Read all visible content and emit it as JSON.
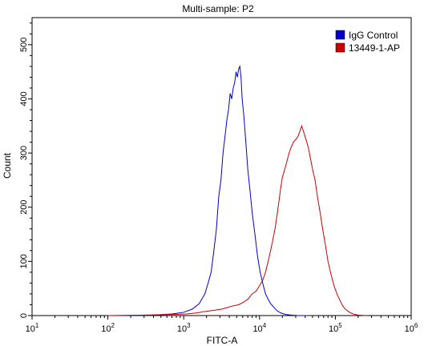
{
  "chart_data": {
    "type": "line",
    "title": "Multi-sample: P2",
    "xlabel": "FITC-A",
    "ylabel": "Count",
    "x_scale": "log",
    "xlim": [
      10,
      1000000
    ],
    "ylim": [
      0,
      550
    ],
    "x_ticks": [
      {
        "base": "10",
        "exp": "1",
        "value": 10
      },
      {
        "base": "10",
        "exp": "2",
        "value": 100
      },
      {
        "base": "10",
        "exp": "3",
        "value": 1000
      },
      {
        "base": "10",
        "exp": "4",
        "value": 10000
      },
      {
        "base": "10",
        "exp": "5",
        "value": 100000
      },
      {
        "base": "10",
        "exp": "6",
        "value": 1000000
      }
    ],
    "y_ticks": [
      "0",
      "100",
      "200",
      "300",
      "400",
      "500"
    ],
    "legend_position": "top-right",
    "grid": false,
    "series": [
      {
        "name": "IgG Control",
        "color": "#0000cc",
        "points": [
          [
            160,
            0
          ],
          [
            400,
            1
          ],
          [
            700,
            3
          ],
          [
            1000,
            6
          ],
          [
            1300,
            12
          ],
          [
            1600,
            22
          ],
          [
            1900,
            40
          ],
          [
            2100,
            60
          ],
          [
            2300,
            80
          ],
          [
            2500,
            120
          ],
          [
            2700,
            160
          ],
          [
            2900,
            220
          ],
          [
            3100,
            250
          ],
          [
            3300,
            300
          ],
          [
            3500,
            330
          ],
          [
            3700,
            360
          ],
          [
            3900,
            380
          ],
          [
            4100,
            410
          ],
          [
            4300,
            400
          ],
          [
            4500,
            420
          ],
          [
            4700,
            430
          ],
          [
            4900,
            450
          ],
          [
            5100,
            440
          ],
          [
            5300,
            455
          ],
          [
            5500,
            460
          ],
          [
            5700,
            440
          ],
          [
            5900,
            400
          ],
          [
            6200,
            370
          ],
          [
            6600,
            320
          ],
          [
            7000,
            270
          ],
          [
            7500,
            230
          ],
          [
            8000,
            190
          ],
          [
            8700,
            150
          ],
          [
            9400,
            110
          ],
          [
            10200,
            80
          ],
          [
            11000,
            60
          ],
          [
            12000,
            40
          ],
          [
            13000,
            30
          ],
          [
            14000,
            22
          ],
          [
            15500,
            15
          ],
          [
            17000,
            9
          ],
          [
            19000,
            5
          ],
          [
            22000,
            2
          ],
          [
            26000,
            1
          ],
          [
            32000,
            0
          ],
          [
            45000,
            0
          ]
        ]
      },
      {
        "name": "13449-1-AP",
        "color": "#cc0000",
        "points": [
          [
            100,
            0
          ],
          [
            300,
            1
          ],
          [
            700,
            2
          ],
          [
            1100,
            3
          ],
          [
            1500,
            5
          ],
          [
            2000,
            8
          ],
          [
            2600,
            10
          ],
          [
            3200,
            12
          ],
          [
            3800,
            15
          ],
          [
            4500,
            18
          ],
          [
            5300,
            20
          ],
          [
            6200,
            25
          ],
          [
            7000,
            30
          ],
          [
            8000,
            40
          ],
          [
            9000,
            45
          ],
          [
            10000,
            55
          ],
          [
            11000,
            65
          ],
          [
            12000,
            80
          ],
          [
            13000,
            100
          ],
          [
            14000,
            120
          ],
          [
            15000,
            140
          ],
          [
            16000,
            160
          ],
          [
            17000,
            185
          ],
          [
            18000,
            210
          ],
          [
            19000,
            235
          ],
          [
            20000,
            255
          ],
          [
            21500,
            270
          ],
          [
            23000,
            285
          ],
          [
            24500,
            300
          ],
          [
            26000,
            310
          ],
          [
            28000,
            320
          ],
          [
            30000,
            325
          ],
          [
            32000,
            330
          ],
          [
            34000,
            340
          ],
          [
            36000,
            350
          ],
          [
            38000,
            340
          ],
          [
            40000,
            330
          ],
          [
            42000,
            320
          ],
          [
            44000,
            310
          ],
          [
            47000,
            290
          ],
          [
            50000,
            270
          ],
          [
            54000,
            250
          ],
          [
            58000,
            220
          ],
          [
            63000,
            190
          ],
          [
            68000,
            160
          ],
          [
            74000,
            130
          ],
          [
            80000,
            100
          ],
          [
            88000,
            75
          ],
          [
            96000,
            55
          ],
          [
            105000,
            40
          ],
          [
            115000,
            28
          ],
          [
            125000,
            18
          ],
          [
            135000,
            12
          ],
          [
            150000,
            7
          ],
          [
            170000,
            3
          ],
          [
            200000,
            1
          ],
          [
            260000,
            0
          ]
        ]
      }
    ]
  }
}
